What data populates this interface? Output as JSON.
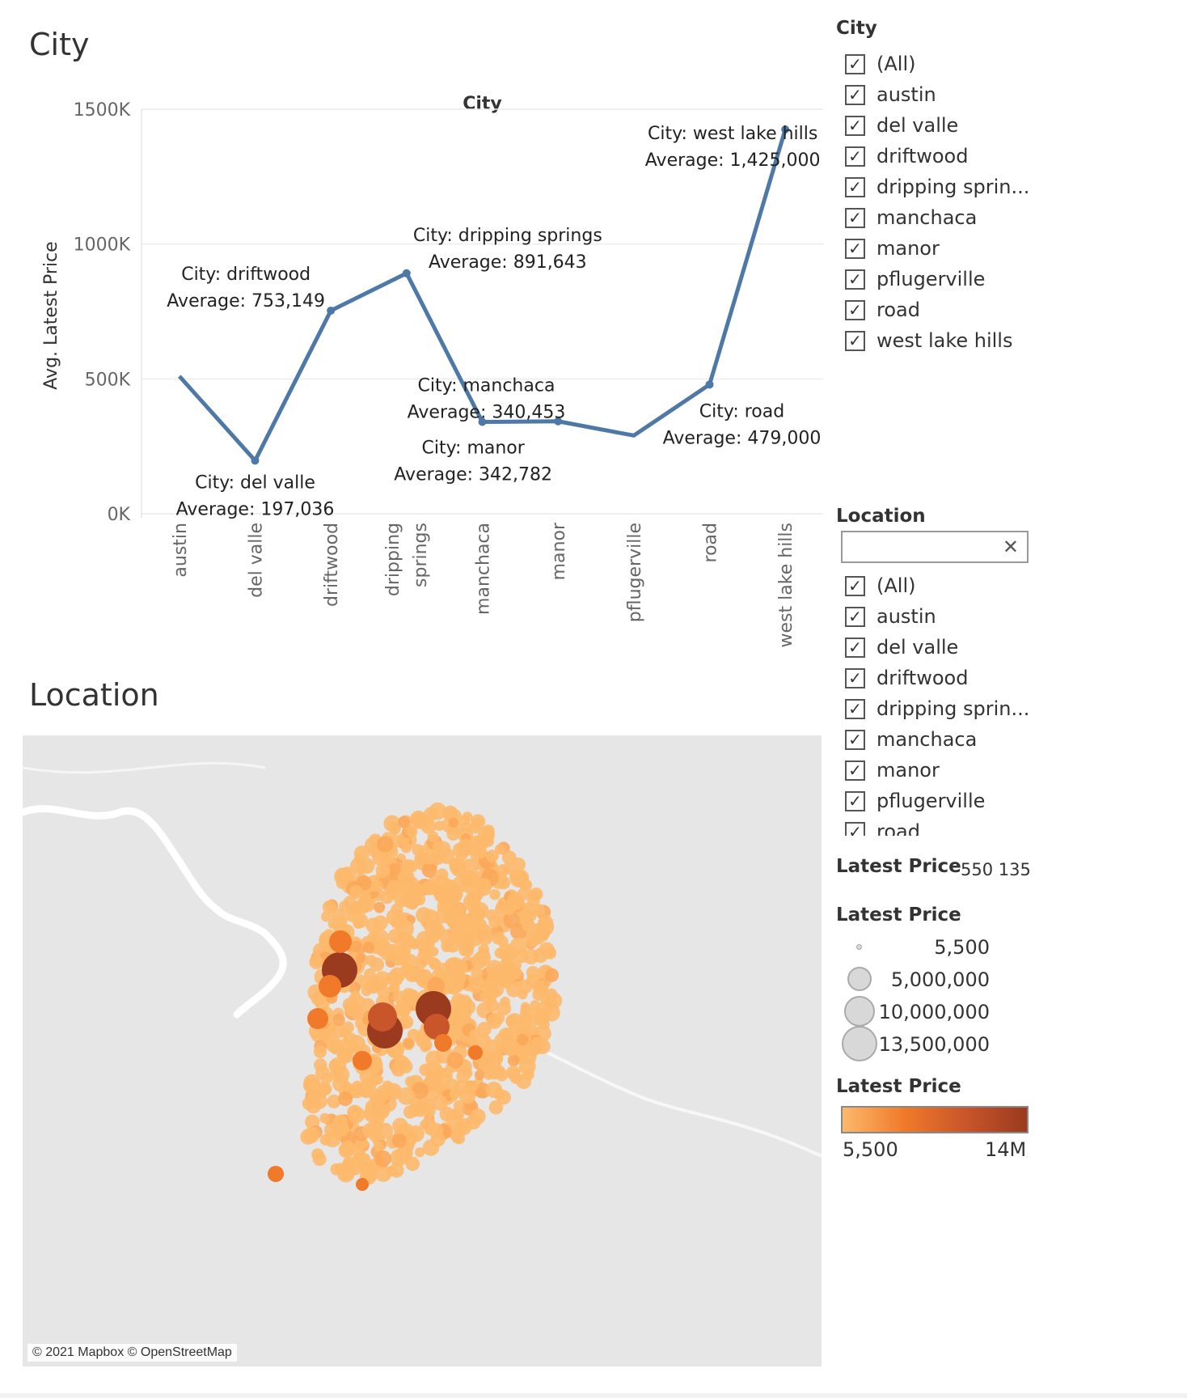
{
  "sheets": {
    "city_title": "City",
    "location_title": "Location"
  },
  "chart_data": {
    "type": "line",
    "title": "City",
    "xlabel": "",
    "ylabel": "Avg. Latest Price",
    "categories": [
      "austin",
      "del valle",
      "driftwood",
      "dripping springs",
      "manchaca",
      "manor",
      "pflugerville",
      "road",
      "west lake hills"
    ],
    "values": [
      510000,
      197036,
      753149,
      891643,
      340453,
      342782,
      290000,
      479000,
      1425000
    ],
    "ylim": [
      0,
      1500000
    ],
    "yticks": [
      "0K",
      "500K",
      "1000K",
      "1500K"
    ],
    "grid": true,
    "line_color": "#4e79a7",
    "annotations": [
      {
        "index": 1,
        "city": "City: del valle",
        "avg": "Average: 197,036"
      },
      {
        "index": 2,
        "city": "City: driftwood",
        "avg": "Average: 753,149"
      },
      {
        "index": 3,
        "city": "City: dripping springs",
        "avg": "Average: 891,643"
      },
      {
        "index": 4,
        "city": "City: manchaca",
        "avg": "Average: 340,453"
      },
      {
        "index": 5,
        "city": "City: manor",
        "avg": "Average: 342,782"
      },
      {
        "index": 7,
        "city": "City: road",
        "avg": "Average: 479,000"
      },
      {
        "index": 8,
        "city": "City: west lake hills",
        "avg": "Average: 1,425,000"
      }
    ]
  },
  "city_filter": {
    "title": "City",
    "items": [
      "(All)",
      "austin",
      "del valle",
      "driftwood",
      "dripping sprin...",
      "manchaca",
      "manor",
      "pflugerville",
      "road",
      "west lake hills"
    ],
    "check_glyph": "✓"
  },
  "location_filter": {
    "title": "Location",
    "search_placeholder": "",
    "clear_glyph": "✕",
    "items": [
      "(All)",
      "austin",
      "del valle",
      "driftwood",
      "dripping sprin...",
      "manchaca",
      "manor",
      "pflugerville",
      "road"
    ]
  },
  "price_range": {
    "title": "Latest Price",
    "value": "550 135("
  },
  "size_legend": {
    "title": "Latest Price",
    "values": [
      "5,500",
      "5,000,000",
      "10,000,000",
      "13,500,000"
    ]
  },
  "color_legend": {
    "title": "Latest Price",
    "min": "5,500",
    "max": "14M",
    "colors": [
      "#fdb96b",
      "#f07a2a",
      "#c9552a",
      "#9a3a1f"
    ]
  },
  "map": {
    "attribution": "© 2021 Mapbox © OpenStreetMap",
    "background": "#e6e6e6"
  }
}
